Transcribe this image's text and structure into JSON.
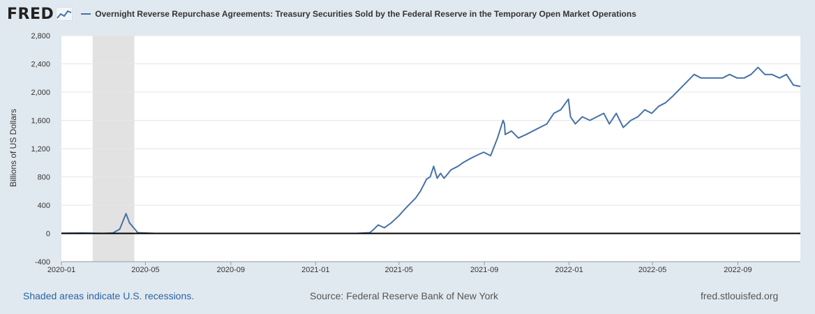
{
  "header": {
    "logo_text": "FRED",
    "legend_label": "Overnight Reverse Repurchase Agreements: Treasury Securities Sold by the Federal Reserve in the Temporary Open Market Operations"
  },
  "footer": {
    "recession_note": "Shaded areas indicate U.S. recessions.",
    "source": "Source: Federal Reserve Bank of New York",
    "site": "fred.stlouisfed.org"
  },
  "colors": {
    "series": "#4572a7",
    "recession": "#e2e2e2",
    "background": "#e1e9f0",
    "plot": "#ffffff"
  },
  "chart_data": {
    "type": "line",
    "title": "",
    "xlabel": "",
    "ylabel": "Billions of US Dollars",
    "ylim": [
      -400,
      2800
    ],
    "yticks": [
      -400,
      0,
      400,
      800,
      1200,
      1600,
      2000,
      2400,
      2800
    ],
    "ytick_labels": [
      "-400",
      "0",
      "400",
      "800",
      "1,200",
      "1,600",
      "2,000",
      "2,400",
      "2,800"
    ],
    "xlim": [
      "2020-01-01",
      "2022-11-30"
    ],
    "xticks": [
      "2020-01",
      "2020-05",
      "2020-09",
      "2021-01",
      "2021-05",
      "2021-09",
      "2022-01",
      "2022-05",
      "2022-09"
    ],
    "grid": true,
    "legend": "top",
    "recessions": [
      [
        "2020-02-15",
        "2020-04-15"
      ]
    ],
    "series": [
      {
        "name": "Overnight Reverse Repurchase Agreements: Treasury Securities Sold by the Federal Reserve in the Temporary Open Market Operations",
        "x": [
          "2020-01-01",
          "2020-02-01",
          "2020-03-01",
          "2020-03-15",
          "2020-03-25",
          "2020-04-03",
          "2020-04-08",
          "2020-04-14",
          "2020-04-20",
          "2020-05-01",
          "2020-05-15",
          "2020-07-01",
          "2020-09-01",
          "2020-11-01",
          "2021-01-01",
          "2021-02-01",
          "2021-03-01",
          "2021-03-20",
          "2021-03-25",
          "2021-04-01",
          "2021-04-10",
          "2021-04-20",
          "2021-05-01",
          "2021-05-10",
          "2021-05-20",
          "2021-05-25",
          "2021-06-01",
          "2021-06-10",
          "2021-06-15",
          "2021-06-20",
          "2021-06-25",
          "2021-06-30",
          "2021-07-05",
          "2021-07-15",
          "2021-07-25",
          "2021-08-01",
          "2021-08-10",
          "2021-08-20",
          "2021-08-31",
          "2021-09-10",
          "2021-09-20",
          "2021-09-28",
          "2021-09-30",
          "2021-10-01",
          "2021-10-10",
          "2021-10-20",
          "2021-10-31",
          "2021-11-10",
          "2021-11-20",
          "2021-11-30",
          "2021-12-10",
          "2021-12-20",
          "2021-12-31",
          "2022-01-03",
          "2022-01-10",
          "2022-01-20",
          "2022-01-31",
          "2022-02-10",
          "2022-02-20",
          "2022-02-28",
          "2022-03-10",
          "2022-03-20",
          "2022-03-31",
          "2022-04-10",
          "2022-04-20",
          "2022-04-30",
          "2022-05-10",
          "2022-05-20",
          "2022-05-31",
          "2022-06-10",
          "2022-06-20",
          "2022-06-30",
          "2022-07-10",
          "2022-07-20",
          "2022-07-31",
          "2022-08-10",
          "2022-08-20",
          "2022-08-31",
          "2022-09-10",
          "2022-09-20",
          "2022-09-30",
          "2022-10-10",
          "2022-10-20",
          "2022-10-31",
          "2022-11-10",
          "2022-11-20",
          "2022-11-30"
        ],
        "values": [
          2,
          5,
          0,
          5,
          60,
          280,
          150,
          80,
          10,
          5,
          0,
          0,
          0,
          0,
          0,
          0,
          0,
          10,
          50,
          120,
          80,
          150,
          250,
          350,
          450,
          500,
          600,
          770,
          800,
          950,
          780,
          850,
          780,
          900,
          950,
          1000,
          1050,
          1100,
          1150,
          1100,
          1350,
          1600,
          1550,
          1400,
          1450,
          1350,
          1400,
          1450,
          1500,
          1550,
          1700,
          1750,
          1900,
          1650,
          1550,
          1650,
          1600,
          1650,
          1700,
          1550,
          1700,
          1500,
          1600,
          1650,
          1750,
          1700,
          1800,
          1850,
          1950,
          2050,
          2150,
          2250,
          2200,
          2200,
          2200,
          2200,
          2250,
          2200,
          2200,
          2250,
          2350,
          2250,
          2250,
          2200,
          2250,
          2100,
          2080
        ]
      }
    ]
  }
}
